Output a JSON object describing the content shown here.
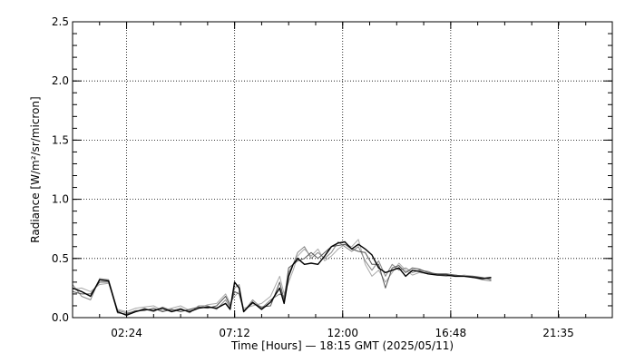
{
  "chart_data": {
    "type": "line",
    "title": "",
    "xlabel": "Time [Hours] — 18:15 GMT  (2025/05/11)",
    "ylabel": "Radiance [W/m²/sr/micron]",
    "xlim": [
      0.0,
      23.98
    ],
    "ylim": [
      0.0,
      2.5
    ],
    "x_ticks": [
      {
        "value": 2.4,
        "label": "02:24"
      },
      {
        "value": 7.2,
        "label": "07:12"
      },
      {
        "value": 12.0,
        "label": "12:00"
      },
      {
        "value": 16.8,
        "label": "16:48"
      },
      {
        "value": 21.583,
        "label": "21:35"
      }
    ],
    "y_ticks": [
      {
        "value": 0.0,
        "label": "0.0"
      },
      {
        "value": 0.5,
        "label": "0.5"
      },
      {
        "value": 1.0,
        "label": "1.0"
      },
      {
        "value": 1.5,
        "label": "1.5"
      },
      {
        "value": 2.0,
        "label": "2.0"
      },
      {
        "value": 2.5,
        "label": "2.5"
      }
    ],
    "grid": true,
    "colors": {
      "series_1": "#000000",
      "series_2": "#555555",
      "series_3": "#888888",
      "series_4": "#aaaaaa"
    },
    "series": [
      {
        "x": [
          0.0,
          0.4,
          0.8,
          1.2,
          1.6,
          2.0,
          2.4,
          2.8,
          3.2,
          3.6,
          4.0,
          4.4,
          4.8,
          5.2,
          5.6,
          6.0,
          6.4,
          6.8,
          7.0,
          7.2,
          7.4,
          7.6,
          8.0,
          8.4,
          8.8,
          9.2,
          9.4,
          9.6,
          9.8,
          10.0,
          10.3,
          10.6,
          10.9,
          11.2,
          11.5,
          11.8,
          12.1,
          12.4,
          12.7,
          13.0,
          13.3,
          13.6,
          13.9,
          14.2,
          14.5,
          14.8,
          15.1,
          15.4,
          15.8,
          16.2,
          16.6,
          17.0,
          17.4,
          17.8,
          18.2,
          18.6
        ],
        "y": [
          0.25,
          0.22,
          0.18,
          0.32,
          0.31,
          0.05,
          0.02,
          0.05,
          0.07,
          0.06,
          0.08,
          0.05,
          0.07,
          0.05,
          0.08,
          0.09,
          0.08,
          0.12,
          0.07,
          0.3,
          0.25,
          0.05,
          0.13,
          0.07,
          0.13,
          0.25,
          0.12,
          0.35,
          0.45,
          0.5,
          0.45,
          0.46,
          0.45,
          0.52,
          0.6,
          0.63,
          0.64,
          0.58,
          0.62,
          0.58,
          0.53,
          0.42,
          0.38,
          0.4,
          0.42,
          0.35,
          0.4,
          0.39,
          0.37,
          0.36,
          0.36,
          0.35,
          0.35,
          0.34,
          0.33,
          0.34
        ]
      },
      {
        "x": [
          0.0,
          0.4,
          0.8,
          1.2,
          1.6,
          2.0,
          2.4,
          2.8,
          3.2,
          3.6,
          4.0,
          4.4,
          4.8,
          5.2,
          5.6,
          6.0,
          6.4,
          6.8,
          7.0,
          7.2,
          7.4,
          7.6,
          8.0,
          8.4,
          8.8,
          9.2,
          9.4,
          9.6,
          9.8,
          10.0,
          10.3,
          10.6,
          10.9,
          11.2,
          11.5,
          11.8,
          12.1,
          12.4,
          12.7,
          13.0,
          13.3,
          13.6,
          13.9,
          14.2,
          14.5,
          14.8,
          15.1,
          15.4,
          15.8,
          16.2,
          16.6,
          17.0,
          17.4,
          17.8,
          18.2,
          18.6
        ],
        "y": [
          0.22,
          0.2,
          0.2,
          0.3,
          0.3,
          0.04,
          0.03,
          0.06,
          0.06,
          0.08,
          0.05,
          0.07,
          0.05,
          0.07,
          0.09,
          0.08,
          0.1,
          0.18,
          0.1,
          0.22,
          0.2,
          0.06,
          0.12,
          0.09,
          0.1,
          0.3,
          0.15,
          0.42,
          0.45,
          0.48,
          0.5,
          0.55,
          0.5,
          0.55,
          0.6,
          0.61,
          0.62,
          0.58,
          0.56,
          0.55,
          0.45,
          0.45,
          0.25,
          0.42,
          0.44,
          0.38,
          0.42,
          0.41,
          0.38,
          0.37,
          0.37,
          0.36,
          0.35,
          0.35,
          0.34,
          0.32
        ]
      },
      {
        "x": [
          0.0,
          0.4,
          0.8,
          1.2,
          1.6,
          2.0,
          2.4,
          2.8,
          3.2,
          3.6,
          4.0,
          4.4,
          4.8,
          5.2,
          5.6,
          6.0,
          6.4,
          6.8,
          7.0,
          7.2,
          7.4,
          7.6,
          8.0,
          8.4,
          8.8,
          9.2,
          9.4,
          9.6,
          9.8,
          10.0,
          10.3,
          10.6,
          10.9,
          11.2,
          11.5,
          11.8,
          12.1,
          12.4,
          12.7,
          13.0,
          13.3,
          13.6,
          13.9,
          14.2,
          14.5,
          14.8,
          15.1,
          15.4,
          15.8,
          16.2,
          16.6,
          17.0,
          17.4,
          17.8,
          18.2,
          18.6
        ],
        "y": [
          0.28,
          0.18,
          0.15,
          0.33,
          0.32,
          0.06,
          0.04,
          0.05,
          0.08,
          0.05,
          0.09,
          0.06,
          0.08,
          0.04,
          0.1,
          0.1,
          0.07,
          0.15,
          0.08,
          0.25,
          0.28,
          0.05,
          0.15,
          0.08,
          0.15,
          0.2,
          0.18,
          0.38,
          0.45,
          0.55,
          0.6,
          0.5,
          0.55,
          0.5,
          0.55,
          0.64,
          0.6,
          0.56,
          0.6,
          0.48,
          0.4,
          0.48,
          0.35,
          0.45,
          0.4,
          0.42,
          0.38,
          0.4,
          0.39,
          0.36,
          0.35,
          0.36,
          0.35,
          0.34,
          0.32,
          0.31
        ]
      },
      {
        "x": [
          0.0,
          0.4,
          0.8,
          1.2,
          1.6,
          2.0,
          2.4,
          2.8,
          3.2,
          3.6,
          4.0,
          4.4,
          4.8,
          5.2,
          5.6,
          6.0,
          6.4,
          6.8,
          7.0,
          7.2,
          7.4,
          7.6,
          8.0,
          8.4,
          8.8,
          9.2,
          9.4,
          9.6,
          9.8,
          10.0,
          10.3,
          10.6,
          10.9,
          11.2,
          11.5,
          11.8,
          12.1,
          12.4,
          12.7,
          13.0,
          13.3,
          13.6,
          13.9,
          14.2,
          14.5,
          14.8,
          15.1,
          15.4,
          15.8,
          16.2,
          16.6,
          17.0,
          17.4,
          17.8,
          18.2,
          18.6
        ],
        "y": [
          0.24,
          0.25,
          0.22,
          0.28,
          0.29,
          0.07,
          0.05,
          0.08,
          0.09,
          0.1,
          0.06,
          0.08,
          0.1,
          0.06,
          0.08,
          0.11,
          0.12,
          0.2,
          0.12,
          0.18,
          0.22,
          0.08,
          0.1,
          0.12,
          0.18,
          0.35,
          0.2,
          0.3,
          0.4,
          0.52,
          0.58,
          0.52,
          0.58,
          0.48,
          0.52,
          0.58,
          0.62,
          0.6,
          0.66,
          0.45,
          0.35,
          0.4,
          0.3,
          0.38,
          0.46,
          0.4,
          0.36,
          0.38,
          0.37,
          0.37,
          0.36,
          0.35,
          0.36,
          0.35,
          0.33,
          0.33
        ]
      }
    ]
  }
}
